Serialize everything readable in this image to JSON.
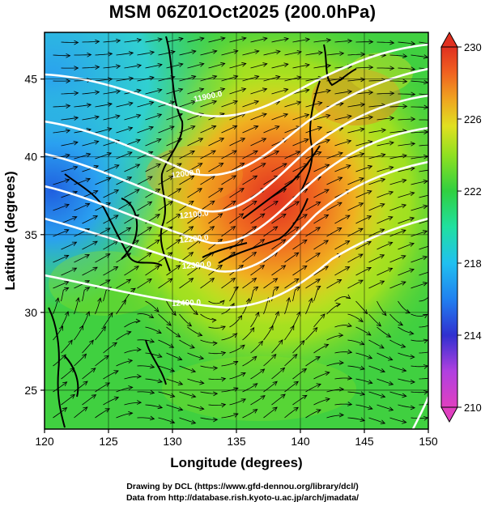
{
  "title": "MSM 06Z01Oct2025 (200.0hPa)",
  "map": {
    "xlabel": "Longitude (degrees)",
    "ylabel": "Latitude  (degrees)",
    "x_range": [
      120,
      150
    ],
    "y_range": [
      22.5,
      48
    ],
    "x_ticks": [
      120,
      125,
      130,
      135,
      140,
      145,
      150
    ],
    "y_ticks": [
      25,
      30,
      35,
      40,
      45
    ],
    "contour_labels": [
      "11900.0",
      "12000.0",
      "12100.0",
      "12200.0",
      "12300.0",
      "12400.0"
    ],
    "colorbar": {
      "ticks": [
        230,
        226,
        222,
        218,
        214,
        210
      ],
      "range": [
        210,
        230
      ],
      "colors": [
        "#e040c0",
        "#b040e0",
        "#4040e0",
        "#2080f0",
        "#20c0f0",
        "#20e0a0",
        "#30d040",
        "#90e020",
        "#e0e020",
        "#f0a020",
        "#f06020",
        "#e03020"
      ]
    }
  },
  "credits": {
    "line1": "Drawing by DCL (https://www.gfd-dennou.org/library/dcl/)",
    "line2": "Data from http://database.rish.kyoto-u.ac.jp/arch/jmadata/"
  }
}
